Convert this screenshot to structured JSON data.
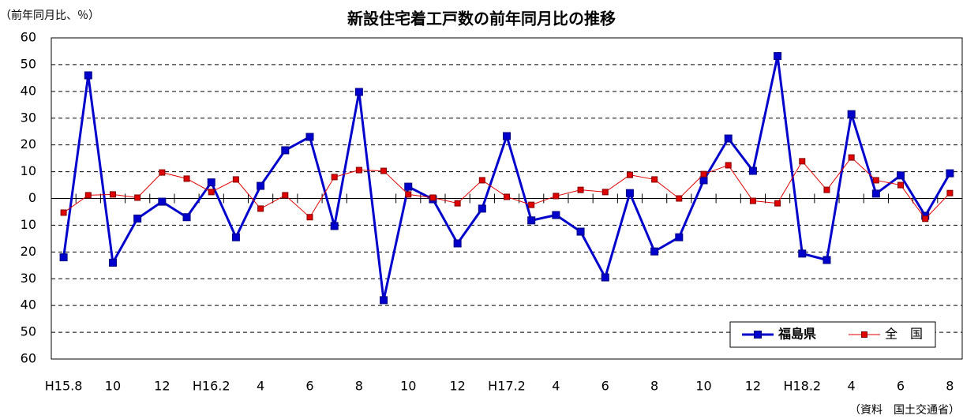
{
  "chart_data": {
    "type": "line",
    "title": "新設住宅着工戸数の前年同月比の推移",
    "y_axis_label": "（前年同月比、％）",
    "source": "（資料　国土交通省）",
    "categories": [
      "H15.8",
      null,
      "10",
      null,
      "12",
      null,
      "H16.2",
      null,
      "4",
      null,
      "6",
      null,
      "8",
      null,
      "10",
      null,
      "12",
      null,
      "H17.2",
      null,
      "4",
      null,
      "6",
      null,
      "8",
      null,
      "10",
      null,
      "12",
      null,
      "H18.2",
      null,
      "4",
      null,
      "6",
      null,
      "8"
    ],
    "series": [
      {
        "name": "福島県",
        "color": "#0000cc",
        "values": [
          -22,
          46,
          -24,
          -7.5,
          -1.2,
          -7,
          6,
          -14.5,
          4.7,
          18,
          23,
          -10.3,
          39.8,
          -38,
          4.4,
          -0.3,
          -16.8,
          -3.8,
          23.3,
          -8.2,
          -6.2,
          -12.4,
          -29.5,
          2,
          -19.8,
          -14.5,
          6.8,
          22.4,
          10.3,
          53.2,
          -20.6,
          -23,
          31.5,
          1.8,
          8.6,
          -6.5,
          9.4
        ]
      },
      {
        "name": "全　国",
        "color": "#e00000",
        "values": [
          -5.3,
          1.2,
          1.5,
          0.3,
          9.7,
          7.4,
          2.4,
          7.1,
          -3.8,
          1.2,
          -7,
          8,
          10.6,
          10.3,
          1.5,
          0.3,
          -1.8,
          6.8,
          0.6,
          -2.4,
          0.9,
          3.2,
          2.4,
          8.8,
          7.1,
          0,
          9.1,
          12.4,
          -0.9,
          -1.8,
          13.9,
          3.2,
          15.3,
          6.8,
          5,
          -7.6,
          2
        ]
      }
    ],
    "ylim": [
      -60,
      60
    ],
    "yticks": [
      60,
      50,
      40,
      30,
      20,
      10,
      0,
      {
        "value": -10,
        "label": "10"
      },
      {
        "value": -20,
        "label": "20"
      },
      {
        "value": -30,
        "label": "30"
      },
      {
        "value": -40,
        "label": "40"
      },
      {
        "value": -50,
        "label": "50"
      },
      {
        "value": -60,
        "label": "60"
      }
    ],
    "grid": true,
    "legend": "lower right"
  }
}
